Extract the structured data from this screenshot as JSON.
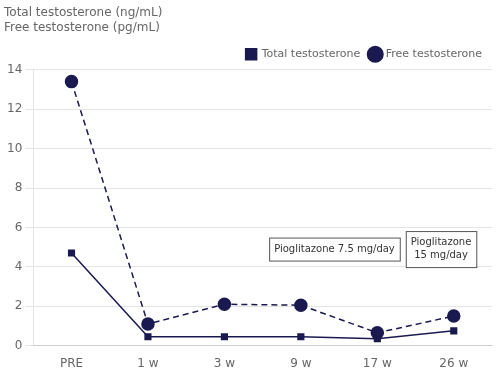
{
  "chart_data": {
    "type": "line",
    "title": "Total testosterone (ng/mL)\nFree testosterone (pg/mL)",
    "categories": [
      "PRE",
      "1 w",
      "3 w",
      "9 w",
      "17 w",
      "26 w"
    ],
    "series": [
      {
        "name": "Total testosterone",
        "color": "#1a1a50",
        "marker": "square",
        "line_style": "solid",
        "values": [
          4.7,
          0.45,
          0.45,
          0.45,
          0.35,
          0.75
        ]
      },
      {
        "name": "Free testosterone",
        "color": "#1a1a50",
        "marker": "circle",
        "line_style": "dashed",
        "values": [
          13.4,
          1.1,
          2.1,
          2.05,
          0.65,
          1.5
        ]
      }
    ],
    "ylim": [
      0,
      14
    ],
    "yticks": [
      0,
      2,
      4,
      6,
      8,
      10,
      12,
      14
    ],
    "grid": true,
    "legend": "upper right",
    "annotations": [
      "Pioglitazone 7.5 mg/day",
      "Pioglitazone\n15 mg/day"
    ]
  }
}
